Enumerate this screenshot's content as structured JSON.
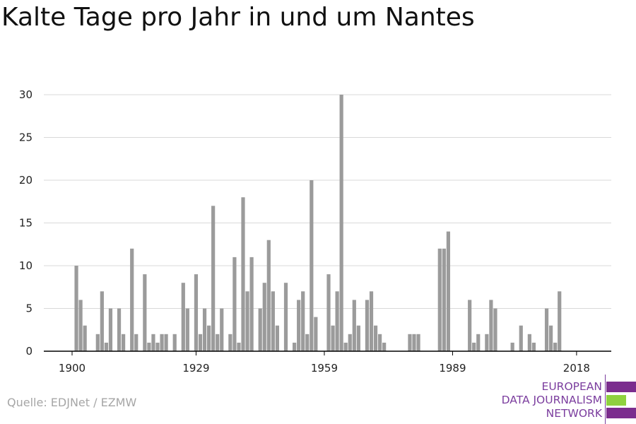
{
  "title": "Kalte Tage pro Jahr in und um Nantes",
  "source": "Quelle: EDJNet / EZMW",
  "logo": {
    "lines": [
      "EUROPEAN",
      "DATA JOURNALISM",
      "NETWORK"
    ],
    "colors": {
      "purple": "#7b2d8e",
      "green": "#8fd13f"
    }
  },
  "colors": {
    "bar": "#9b9b9b",
    "grid": "#d9d9d9",
    "axis": "#000000",
    "text": "#222222"
  },
  "chart_data": {
    "type": "bar",
    "title": "Kalte Tage pro Jahr in und um Nantes",
    "xlabel": "",
    "ylabel": "",
    "ylim": [
      0,
      30
    ],
    "xlim": [
      1900,
      2018
    ],
    "xticks": [
      1900,
      1929,
      1959,
      1989,
      2018
    ],
    "yticks": [
      0,
      5,
      10,
      15,
      20,
      25,
      30
    ],
    "grid": true,
    "x": [
      1900,
      1901,
      1902,
      1903,
      1904,
      1905,
      1906,
      1907,
      1908,
      1909,
      1910,
      1911,
      1912,
      1913,
      1914,
      1915,
      1916,
      1917,
      1918,
      1919,
      1920,
      1921,
      1922,
      1923,
      1924,
      1925,
      1926,
      1927,
      1928,
      1929,
      1930,
      1931,
      1932,
      1933,
      1934,
      1935,
      1936,
      1937,
      1938,
      1939,
      1940,
      1941,
      1942,
      1943,
      1944,
      1945,
      1946,
      1947,
      1948,
      1949,
      1950,
      1951,
      1952,
      1953,
      1954,
      1955,
      1956,
      1957,
      1958,
      1959,
      1960,
      1961,
      1962,
      1963,
      1964,
      1965,
      1966,
      1967,
      1968,
      1969,
      1970,
      1971,
      1972,
      1973,
      1974,
      1975,
      1976,
      1977,
      1978,
      1979,
      1980,
      1981,
      1982,
      1983,
      1984,
      1985,
      1986,
      1987,
      1988,
      1989,
      1990,
      1991,
      1992,
      1993,
      1994,
      1995,
      1996,
      1997,
      1998,
      1999,
      2000,
      2001,
      2002,
      2003,
      2004,
      2005,
      2006,
      2007,
      2008,
      2009,
      2010,
      2011,
      2012,
      2013,
      2014,
      2015,
      2016,
      2017,
      2018
    ],
    "values": [
      0,
      10,
      6,
      3,
      0,
      0,
      2,
      7,
      1,
      5,
      0,
      5,
      2,
      0,
      12,
      2,
      0,
      9,
      1,
      2,
      1,
      2,
      2,
      0,
      2,
      0,
      8,
      5,
      0,
      9,
      2,
      5,
      3,
      17,
      2,
      5,
      0,
      2,
      11,
      1,
      18,
      7,
      11,
      0,
      5,
      8,
      13,
      7,
      3,
      0,
      8,
      0,
      1,
      6,
      7,
      2,
      20,
      4,
      0,
      0,
      9,
      3,
      7,
      30,
      1,
      2,
      6,
      3,
      0,
      6,
      7,
      3,
      2,
      1,
      0,
      0,
      0,
      0,
      0,
      2,
      2,
      2,
      0,
      0,
      0,
      0,
      12,
      12,
      14,
      0,
      0,
      0,
      0,
      6,
      1,
      2,
      0,
      2,
      6,
      5,
      0,
      0,
      0,
      1,
      0,
      3,
      0,
      2,
      1,
      0,
      0,
      5,
      3,
      1,
      7,
      0,
      0,
      0,
      0
    ]
  },
  "chart_data_note_free": true
}
